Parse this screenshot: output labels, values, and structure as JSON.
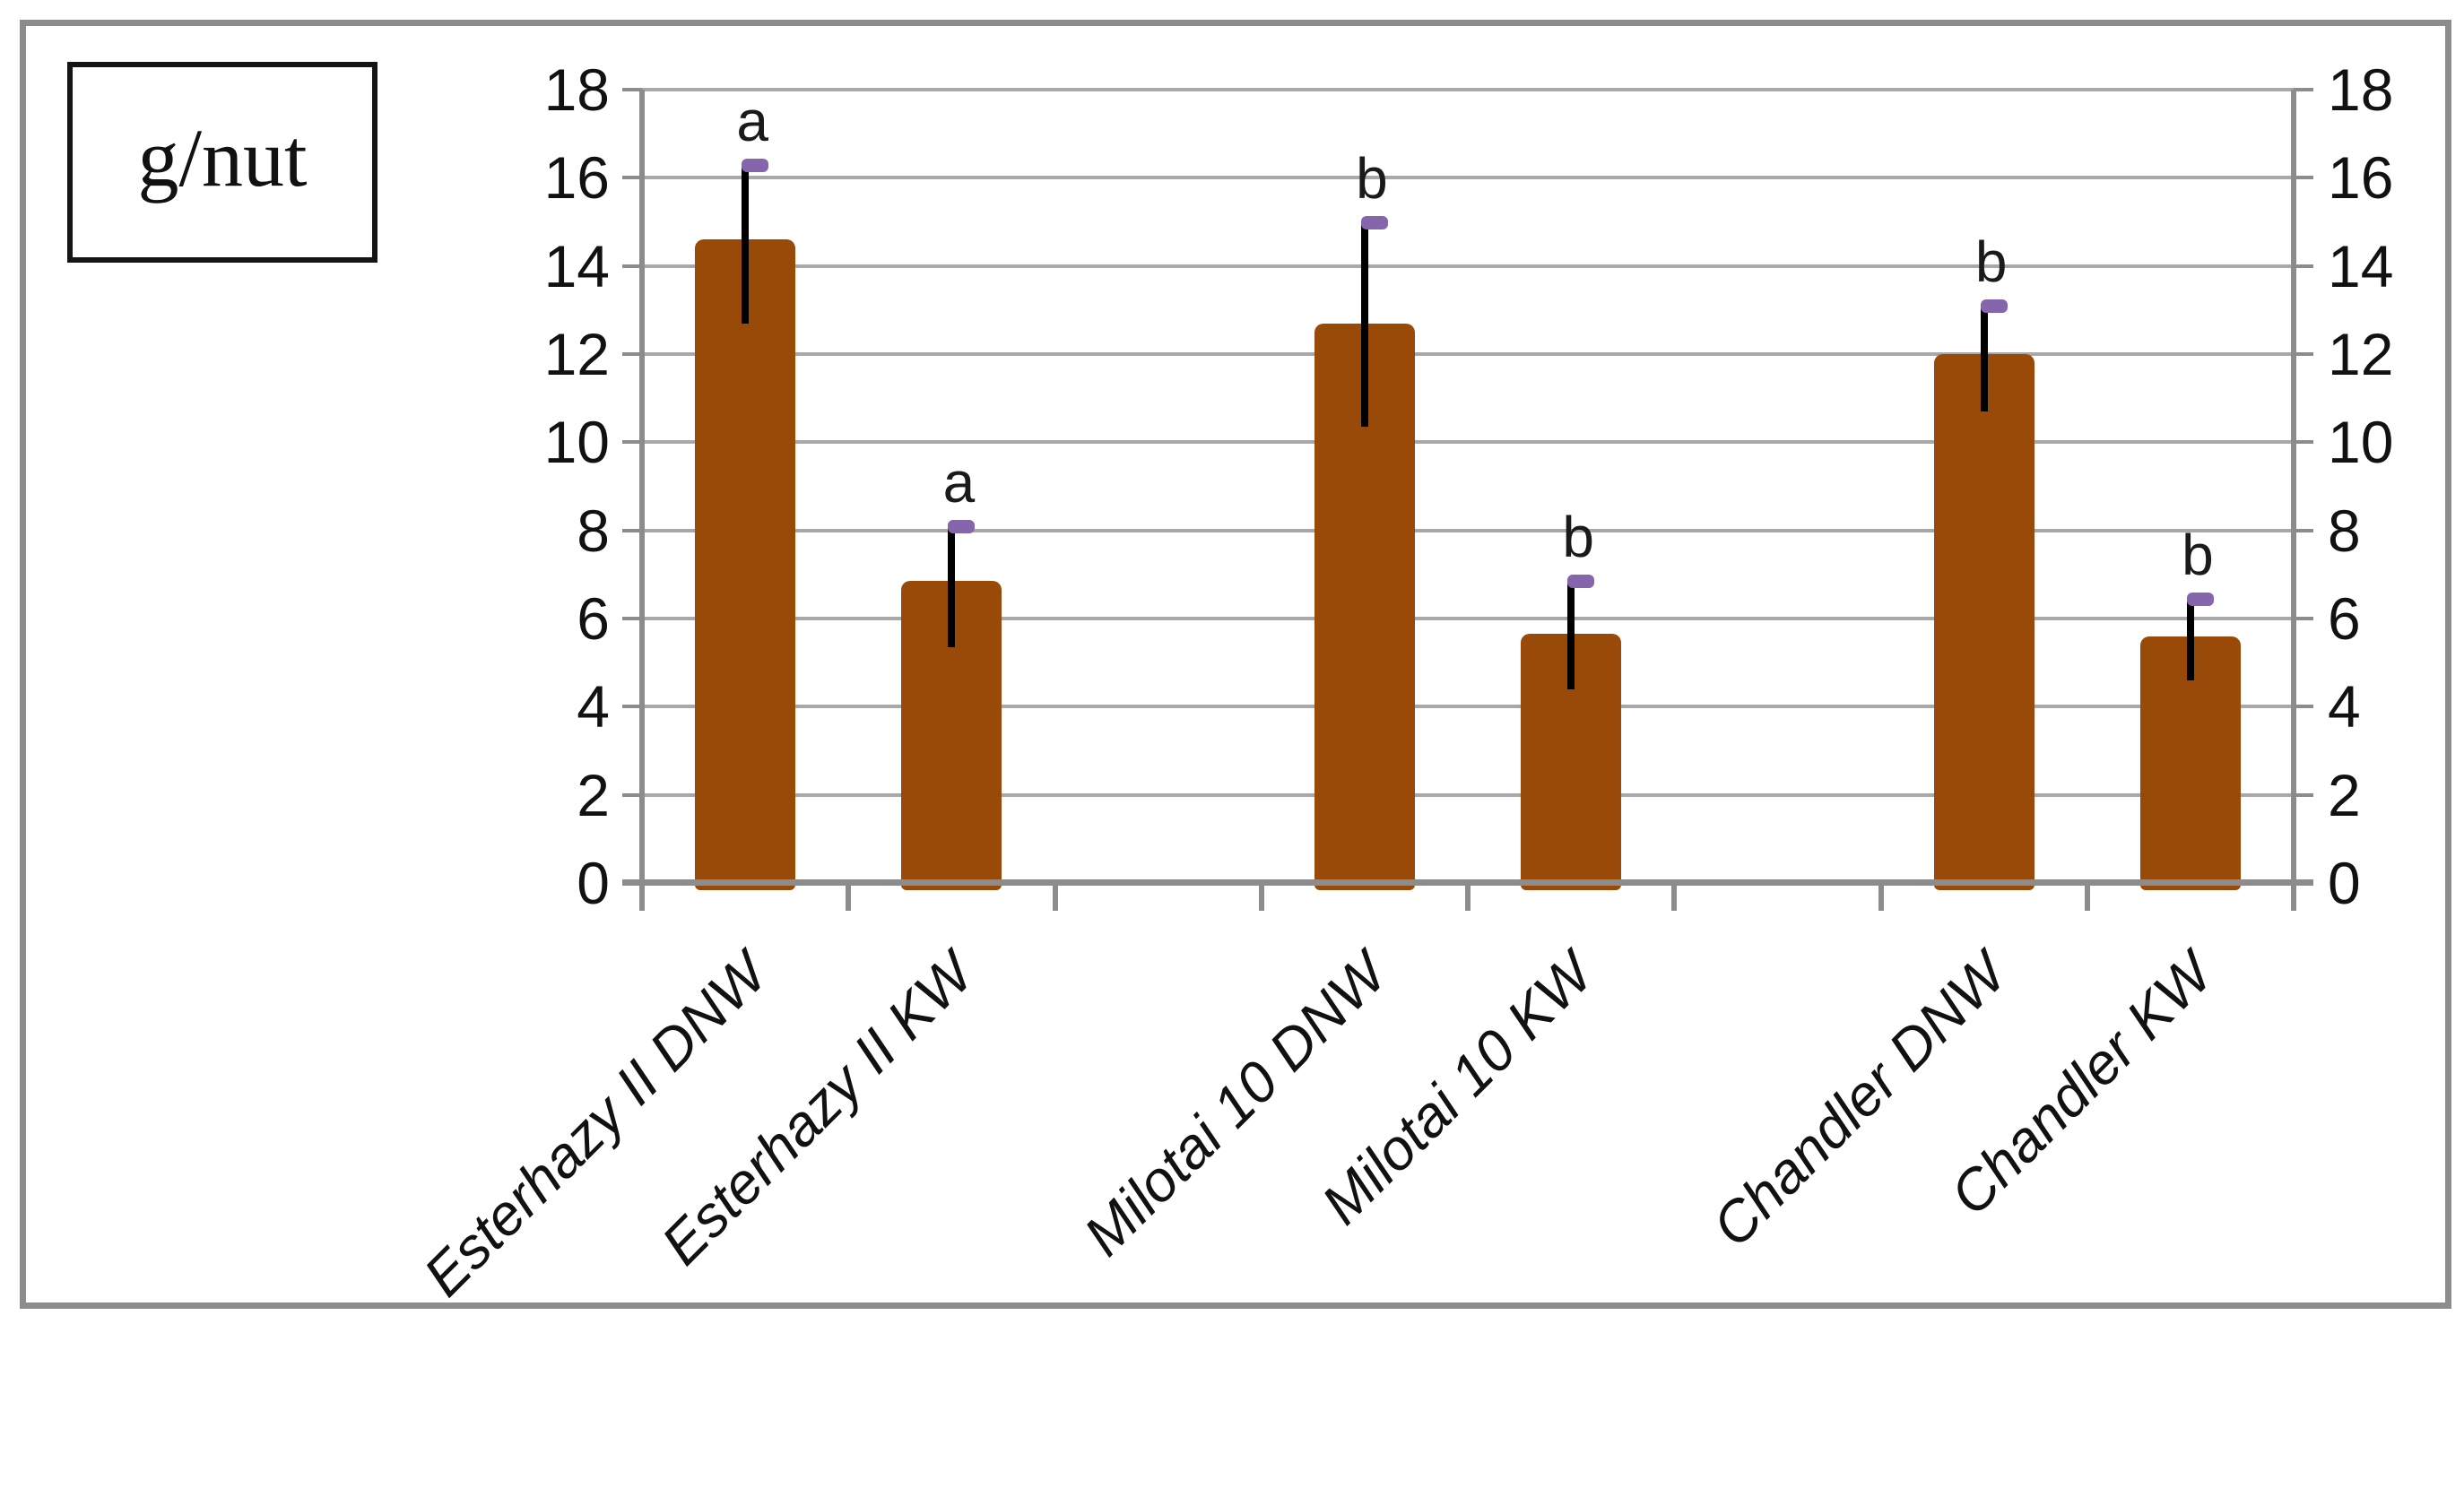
{
  "chart_data": {
    "type": "bar",
    "unit_label": "g/nut",
    "title": "",
    "xlabel": "",
    "ylabel": "g/nut",
    "categories": [
      "Esterhazy II DNW",
      "Esterhazy II KW",
      "Milotai 10 DNW",
      "Milotai 10 KW",
      "Chandler DNW",
      "Chandler KW"
    ],
    "bars": [
      {
        "label": "Esterhazy II DNW",
        "value": 14.6,
        "err_low": 12.7,
        "err_high": 16.3,
        "letter": "a",
        "slot": 0
      },
      {
        "label": "Esterhazy II KW",
        "value": 6.85,
        "err_low": 5.35,
        "err_high": 8.1,
        "letter": "a",
        "slot": 1
      },
      {
        "label": "Milotai 10 DNW",
        "value": 12.7,
        "err_low": 10.35,
        "err_high": 15.0,
        "letter": "b",
        "slot": 3
      },
      {
        "label": "Milotai 10 KW",
        "value": 5.65,
        "err_low": 4.4,
        "err_high": 6.85,
        "letter": "b",
        "slot": 4
      },
      {
        "label": "Chandler DNW",
        "value": 12.0,
        "err_low": 10.7,
        "err_high": 13.1,
        "letter": "b",
        "slot": 6
      },
      {
        "label": "Chandler KW",
        "value": 5.6,
        "err_low": 4.6,
        "err_high": 6.45,
        "letter": "b",
        "slot": 7
      }
    ],
    "y_axis": {
      "min": 0,
      "max": 18,
      "step": 2,
      "tick_labels": [
        "0",
        "2",
        "4",
        "6",
        "8",
        "10",
        "12",
        "14",
        "16",
        "18"
      ],
      "sides": "left and right",
      "grid": true
    },
    "layout_slots": 8,
    "legend": null,
    "colors": {
      "bar_fill": "#9A4A08",
      "error_line": "#000000",
      "error_cap": "#8565AB",
      "gridline": "#A8A8A8",
      "axis": "#8C8C8C",
      "frame_border": "#8C8C8C",
      "text": "#111111",
      "background": "#FFFFFF"
    }
  }
}
